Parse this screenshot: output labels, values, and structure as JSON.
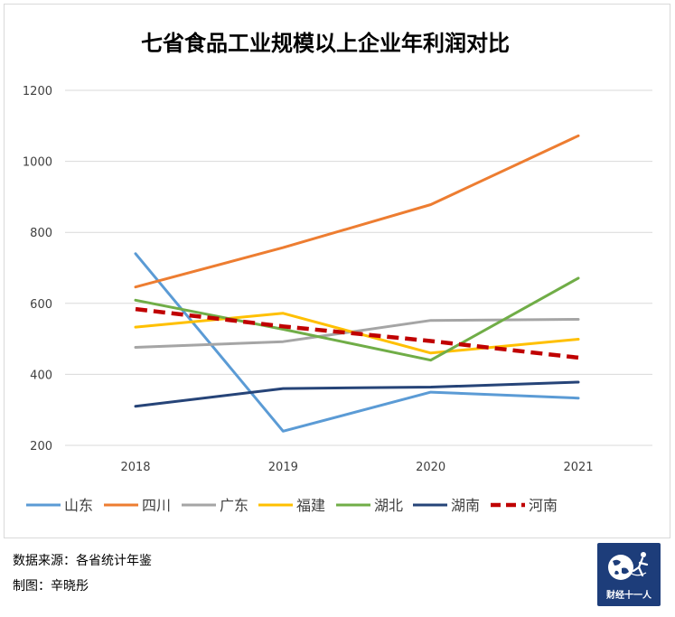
{
  "chart_data": {
    "type": "line",
    "title": "七省食品工业规模以上企业年利润对比",
    "categories": [
      "2018",
      "2019",
      "2020",
      "2021"
    ],
    "ylim": [
      200,
      1200
    ],
    "yticks": [
      200,
      400,
      600,
      800,
      1000,
      1200
    ],
    "grid": true,
    "legend_position": "bottom",
    "series": [
      {
        "name": "山东",
        "color": "#5b9bd5",
        "dashed": false,
        "values": [
          740,
          240,
          350,
          333
        ]
      },
      {
        "name": "四川",
        "color": "#ed7d31",
        "dashed": false,
        "values": [
          646,
          757,
          878,
          1072
        ]
      },
      {
        "name": "广东",
        "color": "#a5a5a5",
        "dashed": false,
        "values": [
          476,
          492,
          552,
          555
        ]
      },
      {
        "name": "福建",
        "color": "#ffc000",
        "dashed": false,
        "values": [
          533,
          572,
          460,
          499
        ]
      },
      {
        "name": "湖北",
        "color": "#70ad47",
        "dashed": false,
        "values": [
          609,
          527,
          440,
          671
        ]
      },
      {
        "name": "湖南",
        "color": "#264478",
        "dashed": false,
        "values": [
          310,
          360,
          364,
          378
        ]
      },
      {
        "name": "河南",
        "color": "#c00000",
        "dashed": true,
        "values": [
          584,
          535,
          494,
          447
        ]
      }
    ]
  },
  "footer": {
    "source": "数据来源：各省统计年鉴",
    "maker": "制图：辛晓彤"
  },
  "logo": {
    "text": "财经十一人",
    "icon": "globe-runner-icon"
  }
}
